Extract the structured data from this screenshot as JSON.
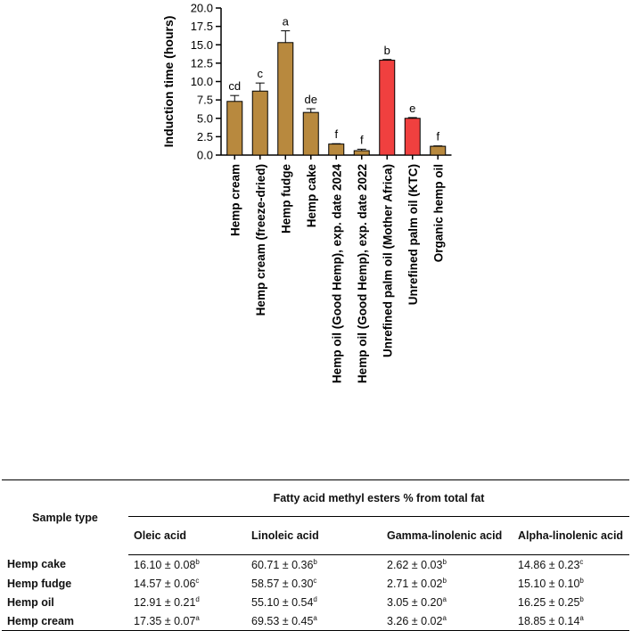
{
  "chart_data": {
    "type": "bar",
    "ylabel": "Induction time (hours)",
    "ylim": [
      0,
      20
    ],
    "yticks": [
      "0.0",
      "2.5",
      "5.0",
      "7.5",
      "10.0",
      "12.5",
      "15.0",
      "17.5",
      "20.0"
    ],
    "categories": [
      "Hemp cream",
      "Hemp cream (freeze-dried)",
      "Hemp fudge",
      "Hemp cake",
      "Hemp oil (Good Hemp), exp. date 2024",
      "Hemp oil (Good Hemp), exp. date 2022",
      "Unrefined palm oil (Mother Africa)",
      "Unrefined palm oil (KTC)",
      "Organic hemp oil"
    ],
    "values": [
      7.3,
      8.7,
      15.3,
      5.8,
      1.5,
      0.6,
      12.9,
      5.0,
      1.2
    ],
    "errors": [
      0.8,
      1.1,
      1.6,
      0.5,
      0.05,
      0.2,
      0.1,
      0.1,
      0.05
    ],
    "letters": [
      "cd",
      "c",
      "a",
      "de",
      "f",
      "f",
      "b",
      "e",
      "f"
    ],
    "colors": [
      "#b8893e",
      "#b8893e",
      "#b8893e",
      "#b8893e",
      "#b8893e",
      "#b8893e",
      "#f0403f",
      "#f0403f",
      "#b8893e"
    ]
  },
  "table": {
    "sample_header": "Sample type",
    "group_header": "Fatty acid methyl esters % from total fat",
    "columns": [
      "Oleic acid",
      "Linoleic acid",
      "Gamma-linolenic acid",
      "Alpha-linolenic acid"
    ],
    "rows": [
      {
        "label": "Hemp cake",
        "cells": [
          {
            "v": "16.10 ± 0.08",
            "s": "b"
          },
          {
            "v": "60.71 ± 0.36",
            "s": "b"
          },
          {
            "v": "2.62 ± 0.03",
            "s": "b"
          },
          {
            "v": "14.86 ± 0.23",
            "s": "c"
          }
        ]
      },
      {
        "label": "Hemp fudge",
        "cells": [
          {
            "v": "14.57 ± 0.06",
            "s": "c"
          },
          {
            "v": "58.57 ± 0.30",
            "s": "c"
          },
          {
            "v": "2.71 ± 0.02",
            "s": "b"
          },
          {
            "v": "15.10 ± 0.10",
            "s": "b"
          }
        ]
      },
      {
        "label": "Hemp oil",
        "cells": [
          {
            "v": "12.91 ± 0.21",
            "s": "d"
          },
          {
            "v": "55.10 ± 0.54",
            "s": "d"
          },
          {
            "v": "3.05 ± 0.20",
            "s": "a"
          },
          {
            "v": "16.25 ± 0.25",
            "s": "b"
          }
        ]
      },
      {
        "label": "Hemp cream",
        "cells": [
          {
            "v": "17.35 ± 0.07",
            "s": "a"
          },
          {
            "v": "69.53 ± 0.45",
            "s": "a"
          },
          {
            "v": "3.26 ± 0.02",
            "s": "a"
          },
          {
            "v": "18.85 ± 0.14",
            "s": "a"
          }
        ]
      }
    ]
  }
}
